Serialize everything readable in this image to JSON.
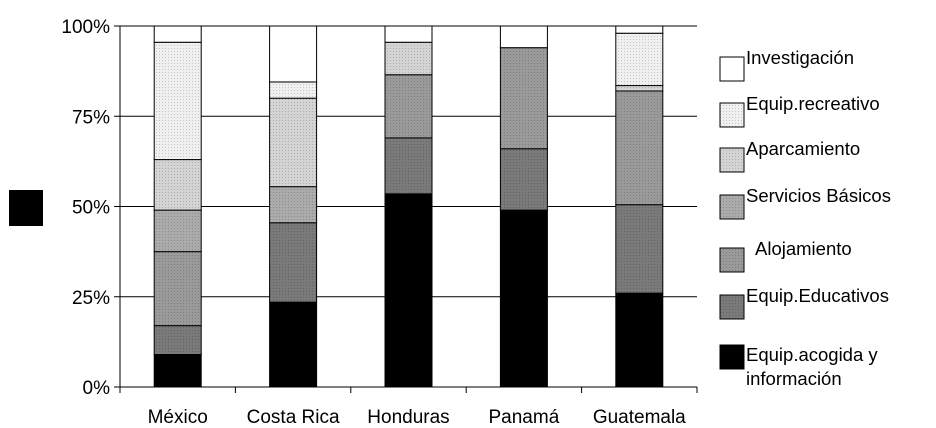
{
  "chart_data": {
    "type": "bar",
    "stacked": true,
    "normalized": true,
    "categories": [
      "México",
      "Costa Rica",
      "Honduras",
      "Panamá",
      "Guatemala"
    ],
    "y_ticks": [
      "0%",
      "25%",
      "50%",
      "75%",
      "100%"
    ],
    "ylim": [
      0,
      100
    ],
    "grid": true,
    "legend_position": "right",
    "legend_order": "top-to-bottom reversed from stack",
    "series": [
      {
        "name": "Equip.acogida y información",
        "values": [
          9,
          23.5,
          53.5,
          49,
          26
        ],
        "color": "#000000"
      },
      {
        "name": "Equip.Educativos",
        "values": [
          8,
          22,
          15.5,
          17,
          24.5
        ],
        "color": "#7a7a7a"
      },
      {
        "name": "Alojamiento",
        "values": [
          20.5,
          0,
          17.5,
          28,
          31.5
        ],
        "color": "#9a9a9a"
      },
      {
        "name": "Servicios Básicos",
        "values": [
          11.5,
          10,
          0,
          0,
          0
        ],
        "color": "#ababab"
      },
      {
        "name": "Aparcamiento",
        "values": [
          14,
          24.5,
          9,
          0,
          1.5
        ],
        "color": "#d4d4d4"
      },
      {
        "name": "Equip.recreativo",
        "values": [
          32.5,
          4.5,
          0,
          0,
          14.5
        ],
        "color": "#f0f0f0"
      },
      {
        "name": "Investigación",
        "values": [
          4.5,
          15.5,
          4.5,
          6,
          2
        ],
        "color": "#ffffff"
      }
    ]
  }
}
